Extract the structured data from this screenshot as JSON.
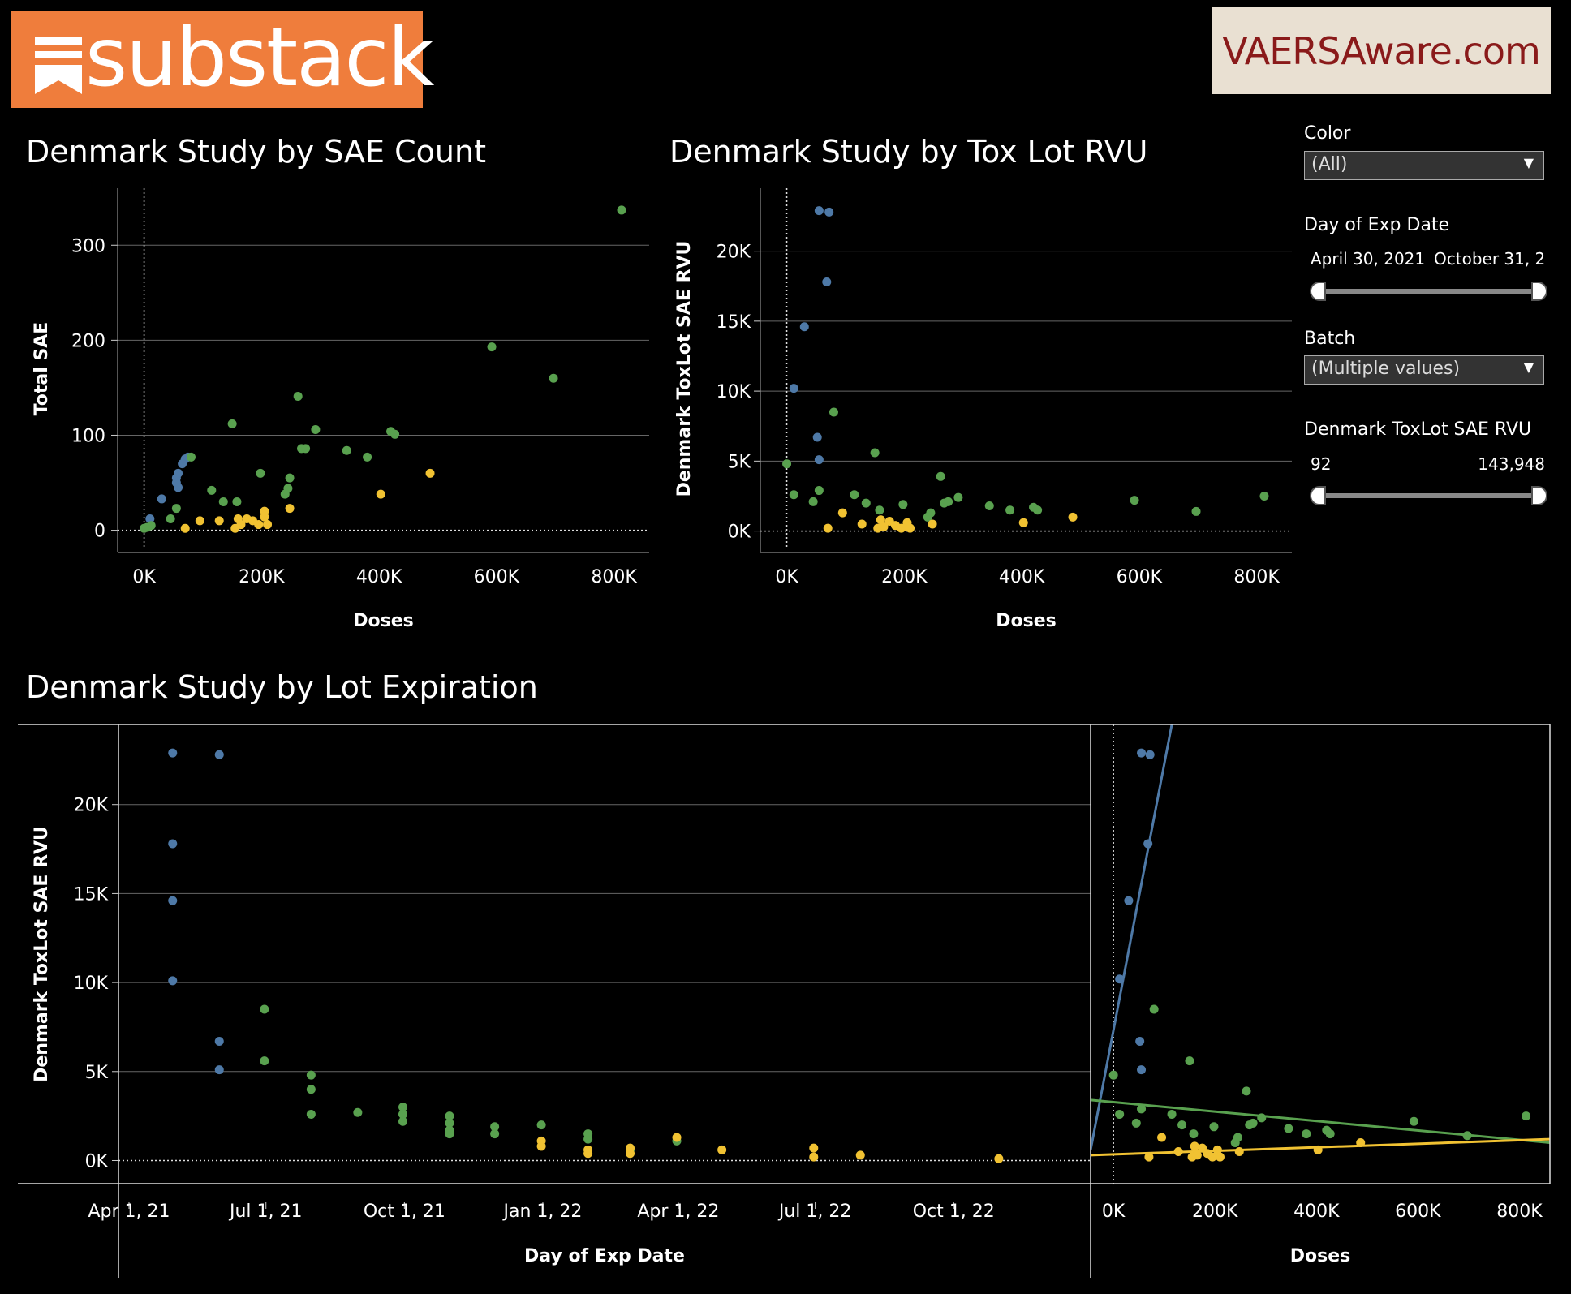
{
  "logos": {
    "substack": "substack",
    "vaers": "VAERSAware.com"
  },
  "titles": {
    "sae_count": "Denmark Study by SAE Count",
    "tox_lot": "Denmark Study by Tox Lot RVU",
    "lot_exp": "Denmark Study by Lot Expiration"
  },
  "filters": {
    "color_label": "Color",
    "color_value": "(All)",
    "exp_label": "Day of Exp Date",
    "exp_from": "April 30, 2021",
    "exp_to": "October 31, 2",
    "batch_label": "Batch",
    "batch_value": "(Multiple values)",
    "rvu_label": "Denmark ToxLot SAE RVU",
    "rvu_from": "92",
    "rvu_to": "143,948"
  },
  "colors": {
    "blue": "#4e79a7",
    "green": "#59a14f",
    "yellow": "#f1c232",
    "grid": "#666666"
  },
  "chart_data": [
    {
      "type": "scatter",
      "title": "Denmark Study by SAE Count",
      "xlabel": "Doses",
      "ylabel": "Total SAE",
      "xlim": [
        -45000,
        860000
      ],
      "ylim": [
        -20,
        360
      ],
      "xticks": [
        0,
        200000,
        400000,
        600000,
        800000
      ],
      "xtick_labels": [
        "0K",
        "200K",
        "400K",
        "600K",
        "800K"
      ],
      "yticks": [
        0,
        100,
        200,
        300
      ],
      "ytick_labels": [
        "0",
        "100",
        "200",
        "300"
      ],
      "series": [
        {
          "color": "blue",
          "points": [
            [
              10000,
              12
            ],
            [
              30000,
              33
            ],
            [
              55000,
              50
            ],
            [
              55000,
              55
            ],
            [
              58000,
              60
            ],
            [
              58000,
              45
            ],
            [
              65000,
              70
            ],
            [
              70000,
              75
            ],
            [
              75000,
              77
            ]
          ]
        },
        {
          "color": "green",
          "points": [
            [
              0,
              2
            ],
            [
              5000,
              3
            ],
            [
              12000,
              5
            ],
            [
              45000,
              12
            ],
            [
              55000,
              23
            ],
            [
              80000,
              77
            ],
            [
              115000,
              42
            ],
            [
              135000,
              30
            ],
            [
              150000,
              112
            ],
            [
              158000,
              30
            ],
            [
              198000,
              60
            ],
            [
              240000,
              38
            ],
            [
              245000,
              44
            ],
            [
              248000,
              55
            ],
            [
              262000,
              141
            ],
            [
              268000,
              86
            ],
            [
              275000,
              86
            ],
            [
              292000,
              106
            ],
            [
              345000,
              84
            ],
            [
              380000,
              77
            ],
            [
              420000,
              104
            ],
            [
              427000,
              101
            ],
            [
              592000,
              193
            ],
            [
              697000,
              160
            ],
            [
              813000,
              337
            ]
          ]
        },
        {
          "color": "yellow",
          "points": [
            [
              70000,
              2
            ],
            [
              95000,
              10
            ],
            [
              128000,
              10
            ],
            [
              155000,
              2
            ],
            [
              160000,
              12
            ],
            [
              165000,
              6
            ],
            [
              175000,
              12
            ],
            [
              185000,
              10
            ],
            [
              195000,
              6
            ],
            [
              205000,
              14
            ],
            [
              205000,
              20
            ],
            [
              210000,
              6
            ],
            [
              248000,
              23
            ],
            [
              403000,
              38
            ],
            [
              487000,
              60
            ]
          ]
        }
      ]
    },
    {
      "type": "scatter",
      "title": "Denmark Study by Tox Lot RVU",
      "xlabel": "Doses",
      "ylabel": "Denmark ToxLot SAE RVU",
      "xlim": [
        -45000,
        860000
      ],
      "ylim": [
        -1300,
        24500
      ],
      "xticks": [
        0,
        200000,
        400000,
        600000,
        800000
      ],
      "xtick_labels": [
        "0K",
        "200K",
        "400K",
        "600K",
        "800K"
      ],
      "yticks": [
        0,
        5000,
        10000,
        15000,
        20000
      ],
      "ytick_labels": [
        "0K",
        "5K",
        "10K",
        "15K",
        "20K"
      ],
      "series": [
        {
          "color": "blue",
          "points": [
            [
              55000,
              22900
            ],
            [
              72000,
              22800
            ],
            [
              68000,
              17800
            ],
            [
              30000,
              14600
            ],
            [
              12000,
              10200
            ],
            [
              52000,
              6700
            ],
            [
              55000,
              5100
            ]
          ]
        },
        {
          "color": "green",
          "points": [
            [
              0,
              4800
            ],
            [
              12000,
              2600
            ],
            [
              45000,
              2100
            ],
            [
              55000,
              2900
            ],
            [
              80000,
              8500
            ],
            [
              115000,
              2600
            ],
            [
              135000,
              2000
            ],
            [
              150000,
              5600
            ],
            [
              158000,
              1500
            ],
            [
              198000,
              1900
            ],
            [
              240000,
              1000
            ],
            [
              245000,
              1300
            ],
            [
              262000,
              3900
            ],
            [
              268000,
              2000
            ],
            [
              275000,
              2100
            ],
            [
              292000,
              2400
            ],
            [
              345000,
              1800
            ],
            [
              380000,
              1500
            ],
            [
              420000,
              1700
            ],
            [
              427000,
              1500
            ],
            [
              592000,
              2200
            ],
            [
              697000,
              1400
            ],
            [
              813000,
              2500
            ]
          ]
        },
        {
          "color": "yellow",
          "points": [
            [
              70000,
              200
            ],
            [
              95000,
              1300
            ],
            [
              128000,
              500
            ],
            [
              155000,
              200
            ],
            [
              160000,
              800
            ],
            [
              165000,
              300
            ],
            [
              175000,
              700
            ],
            [
              185000,
              400
            ],
            [
              195000,
              200
            ],
            [
              205000,
              600
            ],
            [
              205000,
              300
            ],
            [
              210000,
              200
            ],
            [
              248000,
              500
            ],
            [
              403000,
              600
            ],
            [
              487000,
              1000
            ]
          ]
        }
      ]
    },
    {
      "type": "scatter",
      "title": "Denmark Study by Lot Expiration",
      "xlabel": "Day of Exp Date",
      "ylabel": "Denmark ToxLot SAE RVU",
      "x_is_date": true,
      "xlim": [
        "2021-03-25",
        "2022-12-31"
      ],
      "ylim": [
        -1300,
        24500
      ],
      "xticks": [
        "2021-04-01",
        "2021-07-01",
        "2021-10-01",
        "2022-01-01",
        "2022-04-01",
        "2022-07-01",
        "2022-10-01"
      ],
      "xtick_labels": [
        "Apr 1, 21",
        "Jul 1, 21",
        "Oct 1, 21",
        "Jan 1, 22",
        "Apr 1, 22",
        "Jul 1, 22",
        "Oct 1, 22"
      ],
      "yticks": [
        0,
        5000,
        10000,
        15000,
        20000
      ],
      "ytick_labels": [
        "0K",
        "5K",
        "10K",
        "15K",
        "20K"
      ],
      "series": [
        {
          "color": "blue",
          "points": [
            [
              "2021-04-30",
              22900
            ],
            [
              "2021-04-30",
              17800
            ],
            [
              "2021-04-30",
              14600
            ],
            [
              "2021-04-30",
              10100
            ],
            [
              "2021-05-31",
              22800
            ],
            [
              "2021-05-31",
              6700
            ],
            [
              "2021-05-31",
              5100
            ]
          ]
        },
        {
          "color": "green",
          "points": [
            [
              "2021-06-30",
              8500
            ],
            [
              "2021-06-30",
              5600
            ],
            [
              "2021-07-31",
              4800
            ],
            [
              "2021-07-31",
              4000
            ],
            [
              "2021-07-31",
              2600
            ],
            [
              "2021-08-31",
              2700
            ],
            [
              "2021-09-30",
              3000
            ],
            [
              "2021-09-30",
              2600
            ],
            [
              "2021-09-30",
              2200
            ],
            [
              "2021-10-31",
              2500
            ],
            [
              "2021-10-31",
              2100
            ],
            [
              "2021-10-31",
              1700
            ],
            [
              "2021-10-31",
              1500
            ],
            [
              "2021-11-30",
              1900
            ],
            [
              "2021-11-30",
              1500
            ],
            [
              "2021-12-31",
              2000
            ],
            [
              "2022-01-31",
              1500
            ],
            [
              "2022-01-31",
              1200
            ],
            [
              "2022-02-28",
              600
            ],
            [
              "2022-03-31",
              1100
            ]
          ]
        },
        {
          "color": "yellow",
          "points": [
            [
              "2021-12-31",
              1100
            ],
            [
              "2021-12-31",
              800
            ],
            [
              "2022-01-31",
              600
            ],
            [
              "2022-01-31",
              400
            ],
            [
              "2022-02-28",
              700
            ],
            [
              "2022-02-28",
              400
            ],
            [
              "2022-03-31",
              1300
            ],
            [
              "2022-04-30",
              600
            ],
            [
              "2022-06-30",
              700
            ],
            [
              "2022-06-30",
              200
            ],
            [
              "2022-07-31",
              300
            ],
            [
              "2022-10-31",
              100
            ]
          ]
        }
      ]
    },
    {
      "type": "scatter",
      "xlabel": "Doses",
      "ylabel": "Denmark ToxLot SAE RVU",
      "xlim": [
        -45000,
        860000
      ],
      "ylim": [
        -1300,
        24500
      ],
      "xticks": [
        0,
        200000,
        400000,
        600000,
        800000
      ],
      "xtick_labels": [
        "0K",
        "200K",
        "400K",
        "600K",
        "800K"
      ],
      "trend_lines": [
        {
          "color": "blue",
          "from": [
            -45000,
            600
          ],
          "to": [
            115000,
            24500
          ]
        },
        {
          "color": "green",
          "from": [
            -45000,
            3400
          ],
          "to": [
            860000,
            1000
          ]
        },
        {
          "color": "yellow",
          "from": [
            -45000,
            300
          ],
          "to": [
            860000,
            1200
          ]
        }
      ],
      "series": [
        {
          "color": "blue",
          "points": [
            [
              55000,
              22900
            ],
            [
              72000,
              22800
            ],
            [
              68000,
              17800
            ],
            [
              30000,
              14600
            ],
            [
              12000,
              10200
            ],
            [
              52000,
              6700
            ],
            [
              55000,
              5100
            ]
          ]
        },
        {
          "color": "green",
          "points": [
            [
              0,
              4800
            ],
            [
              12000,
              2600
            ],
            [
              45000,
              2100
            ],
            [
              55000,
              2900
            ],
            [
              80000,
              8500
            ],
            [
              115000,
              2600
            ],
            [
              135000,
              2000
            ],
            [
              150000,
              5600
            ],
            [
              158000,
              1500
            ],
            [
              198000,
              1900
            ],
            [
              240000,
              1000
            ],
            [
              245000,
              1300
            ],
            [
              262000,
              3900
            ],
            [
              268000,
              2000
            ],
            [
              275000,
              2100
            ],
            [
              292000,
              2400
            ],
            [
              345000,
              1800
            ],
            [
              380000,
              1500
            ],
            [
              420000,
              1700
            ],
            [
              427000,
              1500
            ],
            [
              592000,
              2200
            ],
            [
              697000,
              1400
            ],
            [
              813000,
              2500
            ]
          ]
        },
        {
          "color": "yellow",
          "points": [
            [
              70000,
              200
            ],
            [
              95000,
              1300
            ],
            [
              128000,
              500
            ],
            [
              155000,
              200
            ],
            [
              160000,
              800
            ],
            [
              165000,
              300
            ],
            [
              175000,
              700
            ],
            [
              185000,
              400
            ],
            [
              195000,
              200
            ],
            [
              205000,
              600
            ],
            [
              205000,
              300
            ],
            [
              210000,
              200
            ],
            [
              248000,
              500
            ],
            [
              403000,
              600
            ],
            [
              487000,
              1000
            ]
          ]
        }
      ]
    }
  ]
}
